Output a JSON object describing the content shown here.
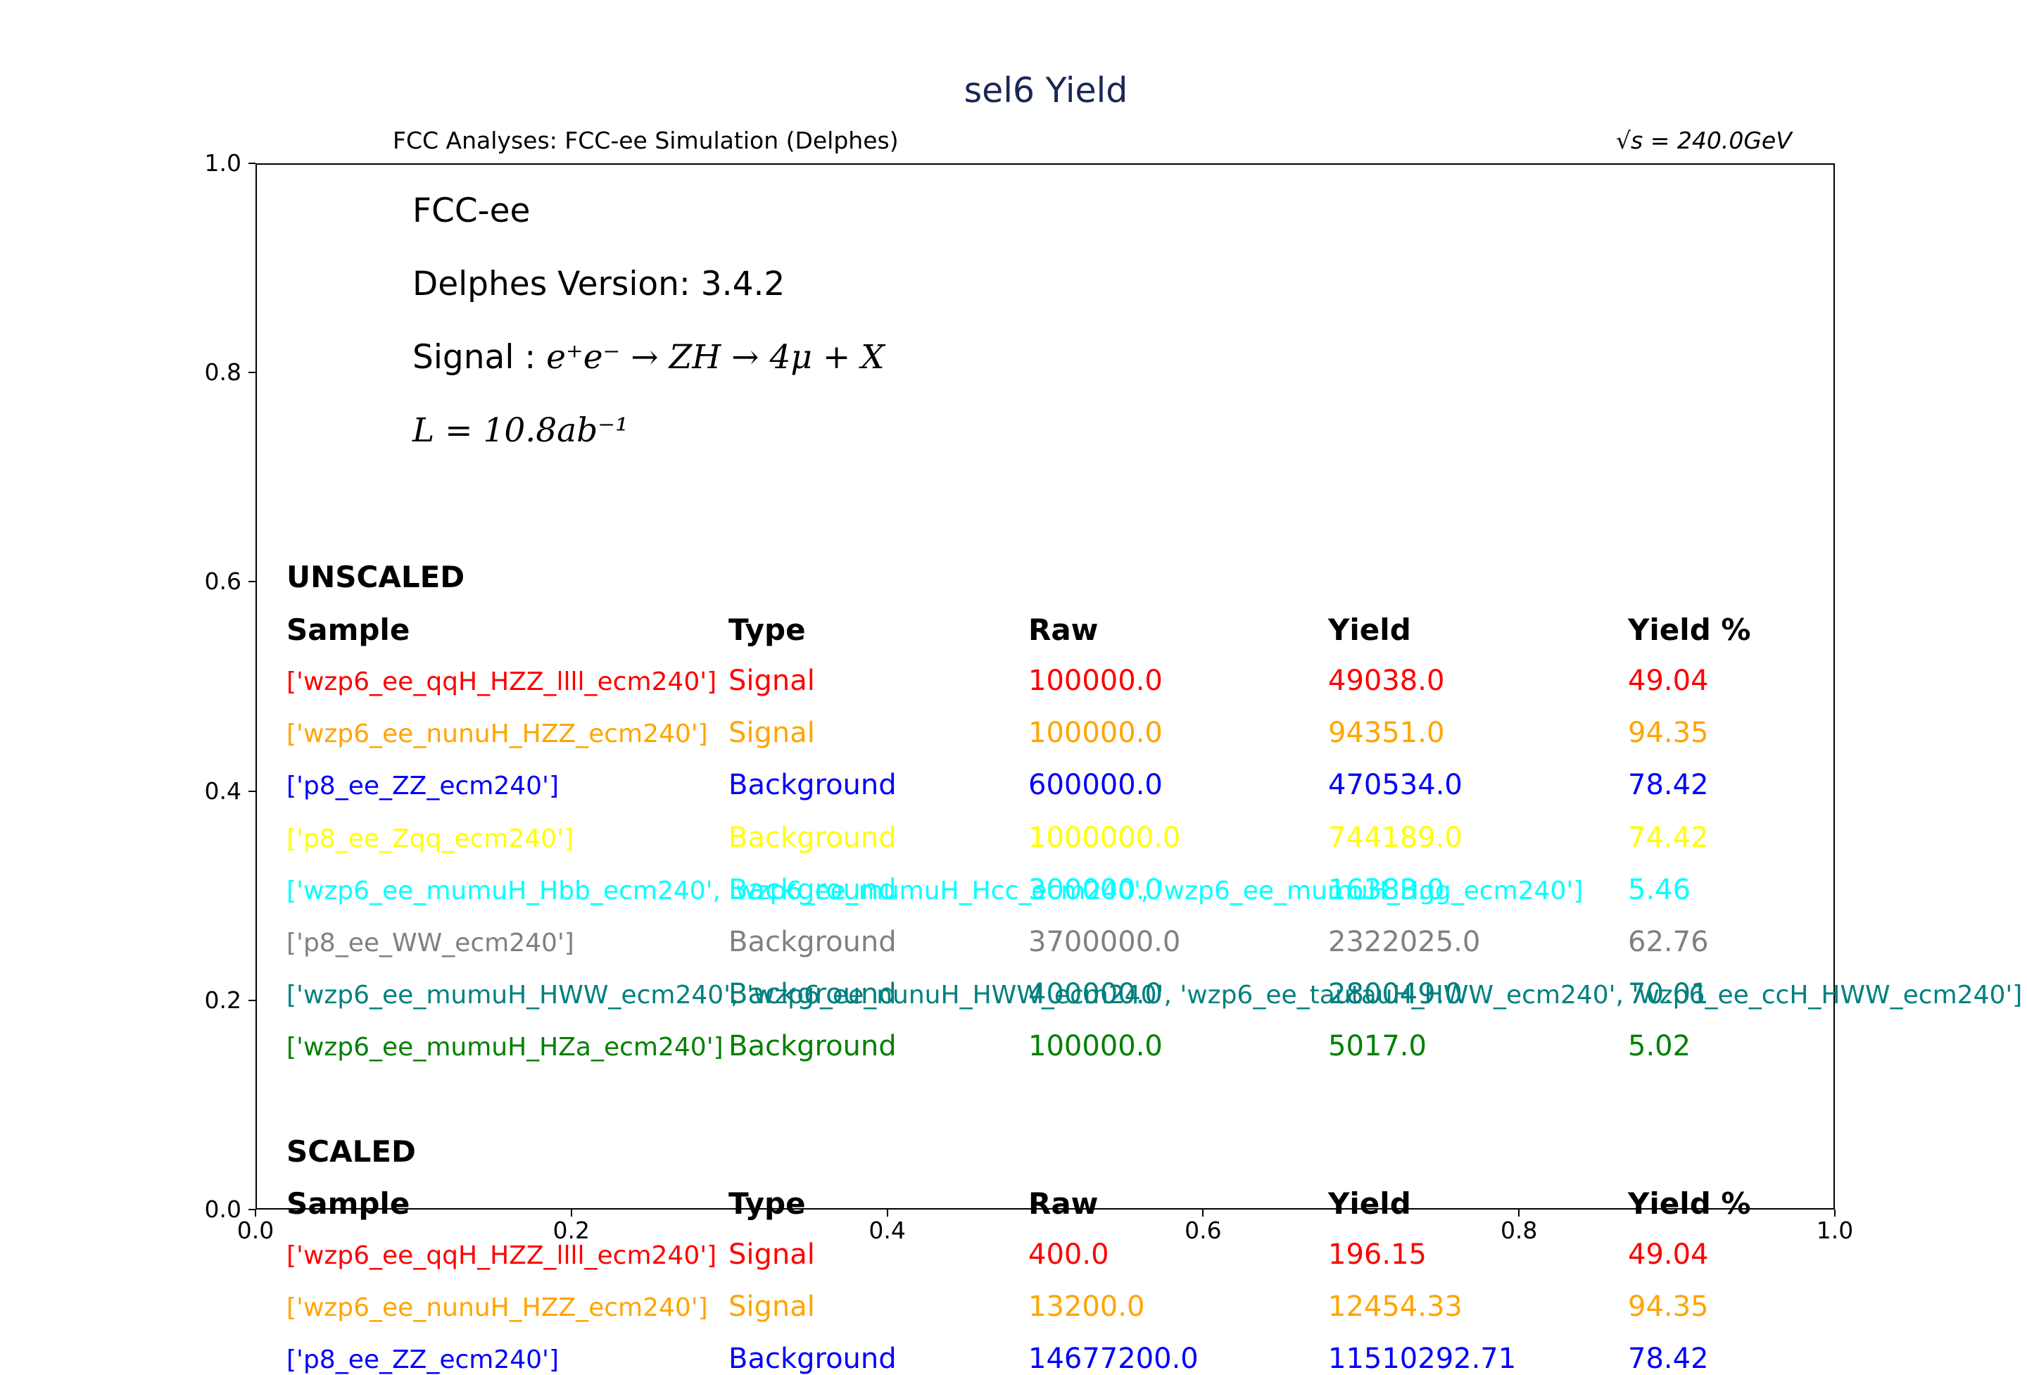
{
  "chart_data": {
    "type": "table",
    "title": "sel6 Yield",
    "subtitle_left": "FCC Analyses: FCC-ee Simulation (Delphes)",
    "subtitle_right": "√s = 240.0GeV",
    "xlim": [
      0.0,
      1.0
    ],
    "ylim": [
      0.0,
      1.0
    ],
    "x_ticks": [
      "0.0",
      "0.2",
      "0.4",
      "0.6",
      "0.8",
      "1.0"
    ],
    "y_ticks": [
      "0.0",
      "0.2",
      "0.4",
      "0.6",
      "0.8",
      "1.0"
    ],
    "info": {
      "collider": "FCC-ee",
      "delphes": "Delphes Version: 3.4.2",
      "signal_prefix": "Signal : ",
      "signal_process": "e⁺e⁻ → ZH → 4μ + X",
      "lumi": "L = 10.8ab⁻¹"
    },
    "columns": [
      "Sample",
      "Type",
      "Raw",
      "Yield",
      "Yield %"
    ],
    "unscaled": {
      "label": "UNSCALED",
      "rows": [
        {
          "sample": "['wzp6_ee_qqH_HZZ_llll_ecm240']",
          "type": "Signal",
          "raw": "100000.0",
          "yield": "49038.0",
          "pct": "49.04",
          "color": "#ff0000"
        },
        {
          "sample": "['wzp6_ee_nunuH_HZZ_ecm240']",
          "type": "Signal",
          "raw": "100000.0",
          "yield": "94351.0",
          "pct": "94.35",
          "color": "#ffa500"
        },
        {
          "sample": "['p8_ee_ZZ_ecm240']",
          "type": "Background",
          "raw": "600000.0",
          "yield": "470534.0",
          "pct": "78.42",
          "color": "#0000ff"
        },
        {
          "sample": "['p8_ee_Zqq_ecm240']",
          "type": "Background",
          "raw": "1000000.0",
          "yield": "744189.0",
          "pct": "74.42",
          "color": "#ffff00"
        },
        {
          "sample": "['wzp6_ee_mumuH_Hbb_ecm240', 'wzp6_ee_mumuH_Hcc_ecm240', 'wzp6_ee_mumuH_Hgg_ecm240']",
          "type": "Background",
          "raw": "300000.0",
          "yield": "16383.0",
          "pct": "5.46",
          "color": "#00ffff"
        },
        {
          "sample": "['p8_ee_WW_ecm240']",
          "type": "Background",
          "raw": "3700000.0",
          "yield": "2322025.0",
          "pct": "62.76",
          "color": "#808080"
        },
        {
          "sample": "['wzp6_ee_mumuH_HWW_ecm240', 'wzp6_ee_nunuH_HWW_ecm240', 'wzp6_ee_tautauH_HWW_ecm240', 'wzp6_ee_ccH_HWW_ecm240']",
          "type": "Background",
          "raw": "400000.0",
          "yield": "280049.0",
          "pct": "70.01",
          "color": "#008080"
        },
        {
          "sample": "['wzp6_ee_mumuH_HZa_ecm240']",
          "type": "Background",
          "raw": "100000.0",
          "yield": "5017.0",
          "pct": "5.02",
          "color": "#008000"
        }
      ]
    },
    "scaled": {
      "label": "SCALED",
      "rows": [
        {
          "sample": "['wzp6_ee_qqH_HZZ_llll_ecm240']",
          "type": "Signal",
          "raw": "400.0",
          "yield": "196.15",
          "pct": "49.04",
          "color": "#ff0000"
        },
        {
          "sample": "['wzp6_ee_nunuH_HZZ_ecm240']",
          "type": "Signal",
          "raw": "13200.0",
          "yield": "12454.33",
          "pct": "94.35",
          "color": "#ffa500"
        },
        {
          "sample": "['p8_ee_ZZ_ecm240']",
          "type": "Background",
          "raw": "14677200.0",
          "yield": "11510292.71",
          "pct": "78.42",
          "color": "#0000ff"
        }
      ]
    }
  }
}
